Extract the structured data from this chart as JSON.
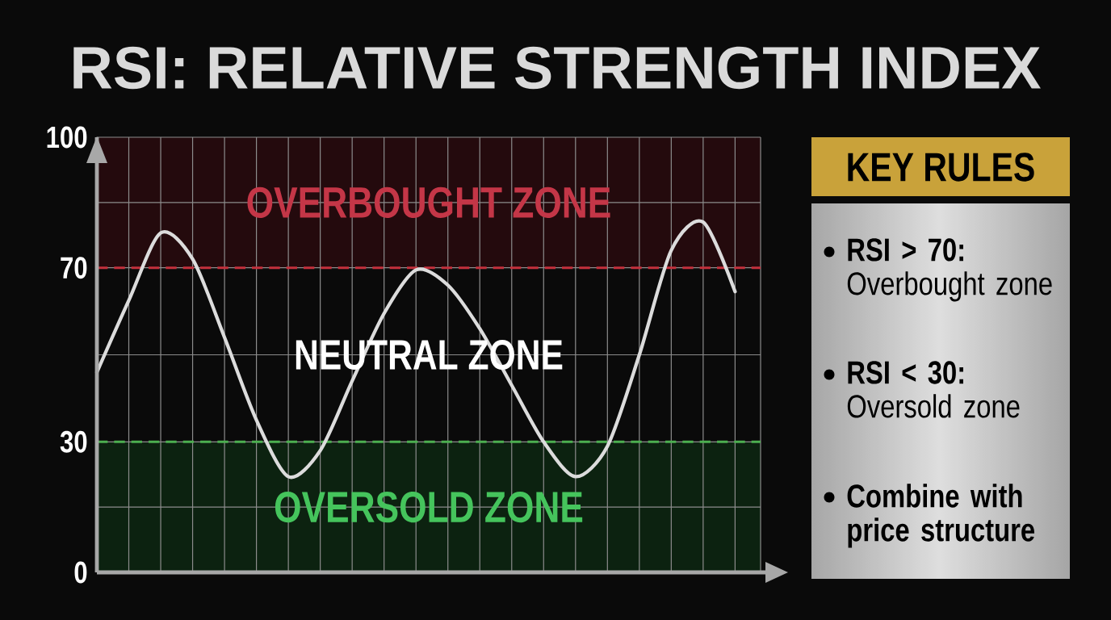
{
  "chart_data": [
    {
      "type": "line",
      "title": "RSI: RELATIVE STRENGTH INDEX",
      "categories": [
        null,
        null,
        null,
        null,
        null,
        null,
        null,
        null,
        null,
        null,
        null,
        null,
        null,
        null,
        null,
        null,
        null,
        null,
        null,
        null,
        null
      ],
      "series": [
        {
          "color": "#dcdcdc",
          "values": [
            46,
            62.5,
            78,
            72,
            54,
            35,
            22,
            28,
            44,
            59.5,
            69.5,
            66,
            56,
            43,
            30,
            22,
            29,
            50,
            74,
            80.5,
            64.5
          ]
        }
      ],
      "ylim": [
        0,
        100
      ],
      "yticks": [
        0,
        {
          "value": 15,
          "label": null
        },
        30,
        {
          "value": 50,
          "label": null
        },
        70,
        {
          "value": 85,
          "label": null
        },
        100
      ],
      "grid": true,
      "tick_labels": "y",
      "line_style": "solid",
      "ref_lines": [
        {
          "axis": "y",
          "value": 70,
          "color": "#c4303c",
          "line_style": "dashed"
        },
        {
          "axis": "y",
          "value": 30,
          "color": "#4caf50",
          "line_style": "dashed"
        }
      ],
      "bands": [
        {
          "axis": "y",
          "from": 70,
          "to": 100,
          "label": "OVERBOUGHT ZONE",
          "color": "#240a0d"
        },
        {
          "axis": "y",
          "from": 0,
          "to": 30,
          "label": "OVERSOLD ZONE",
          "color": "#0c2210"
        }
      ],
      "annotations": [
        "NEUTRAL ZONE"
      ]
    },
    {
      "type": "other",
      "title": "KEY RULES",
      "annotations": [
        "**RSI > 70:** Overbought zone",
        "**RSI < 30:** Oversold zone",
        "Combine with price structure"
      ]
    }
  ]
}
